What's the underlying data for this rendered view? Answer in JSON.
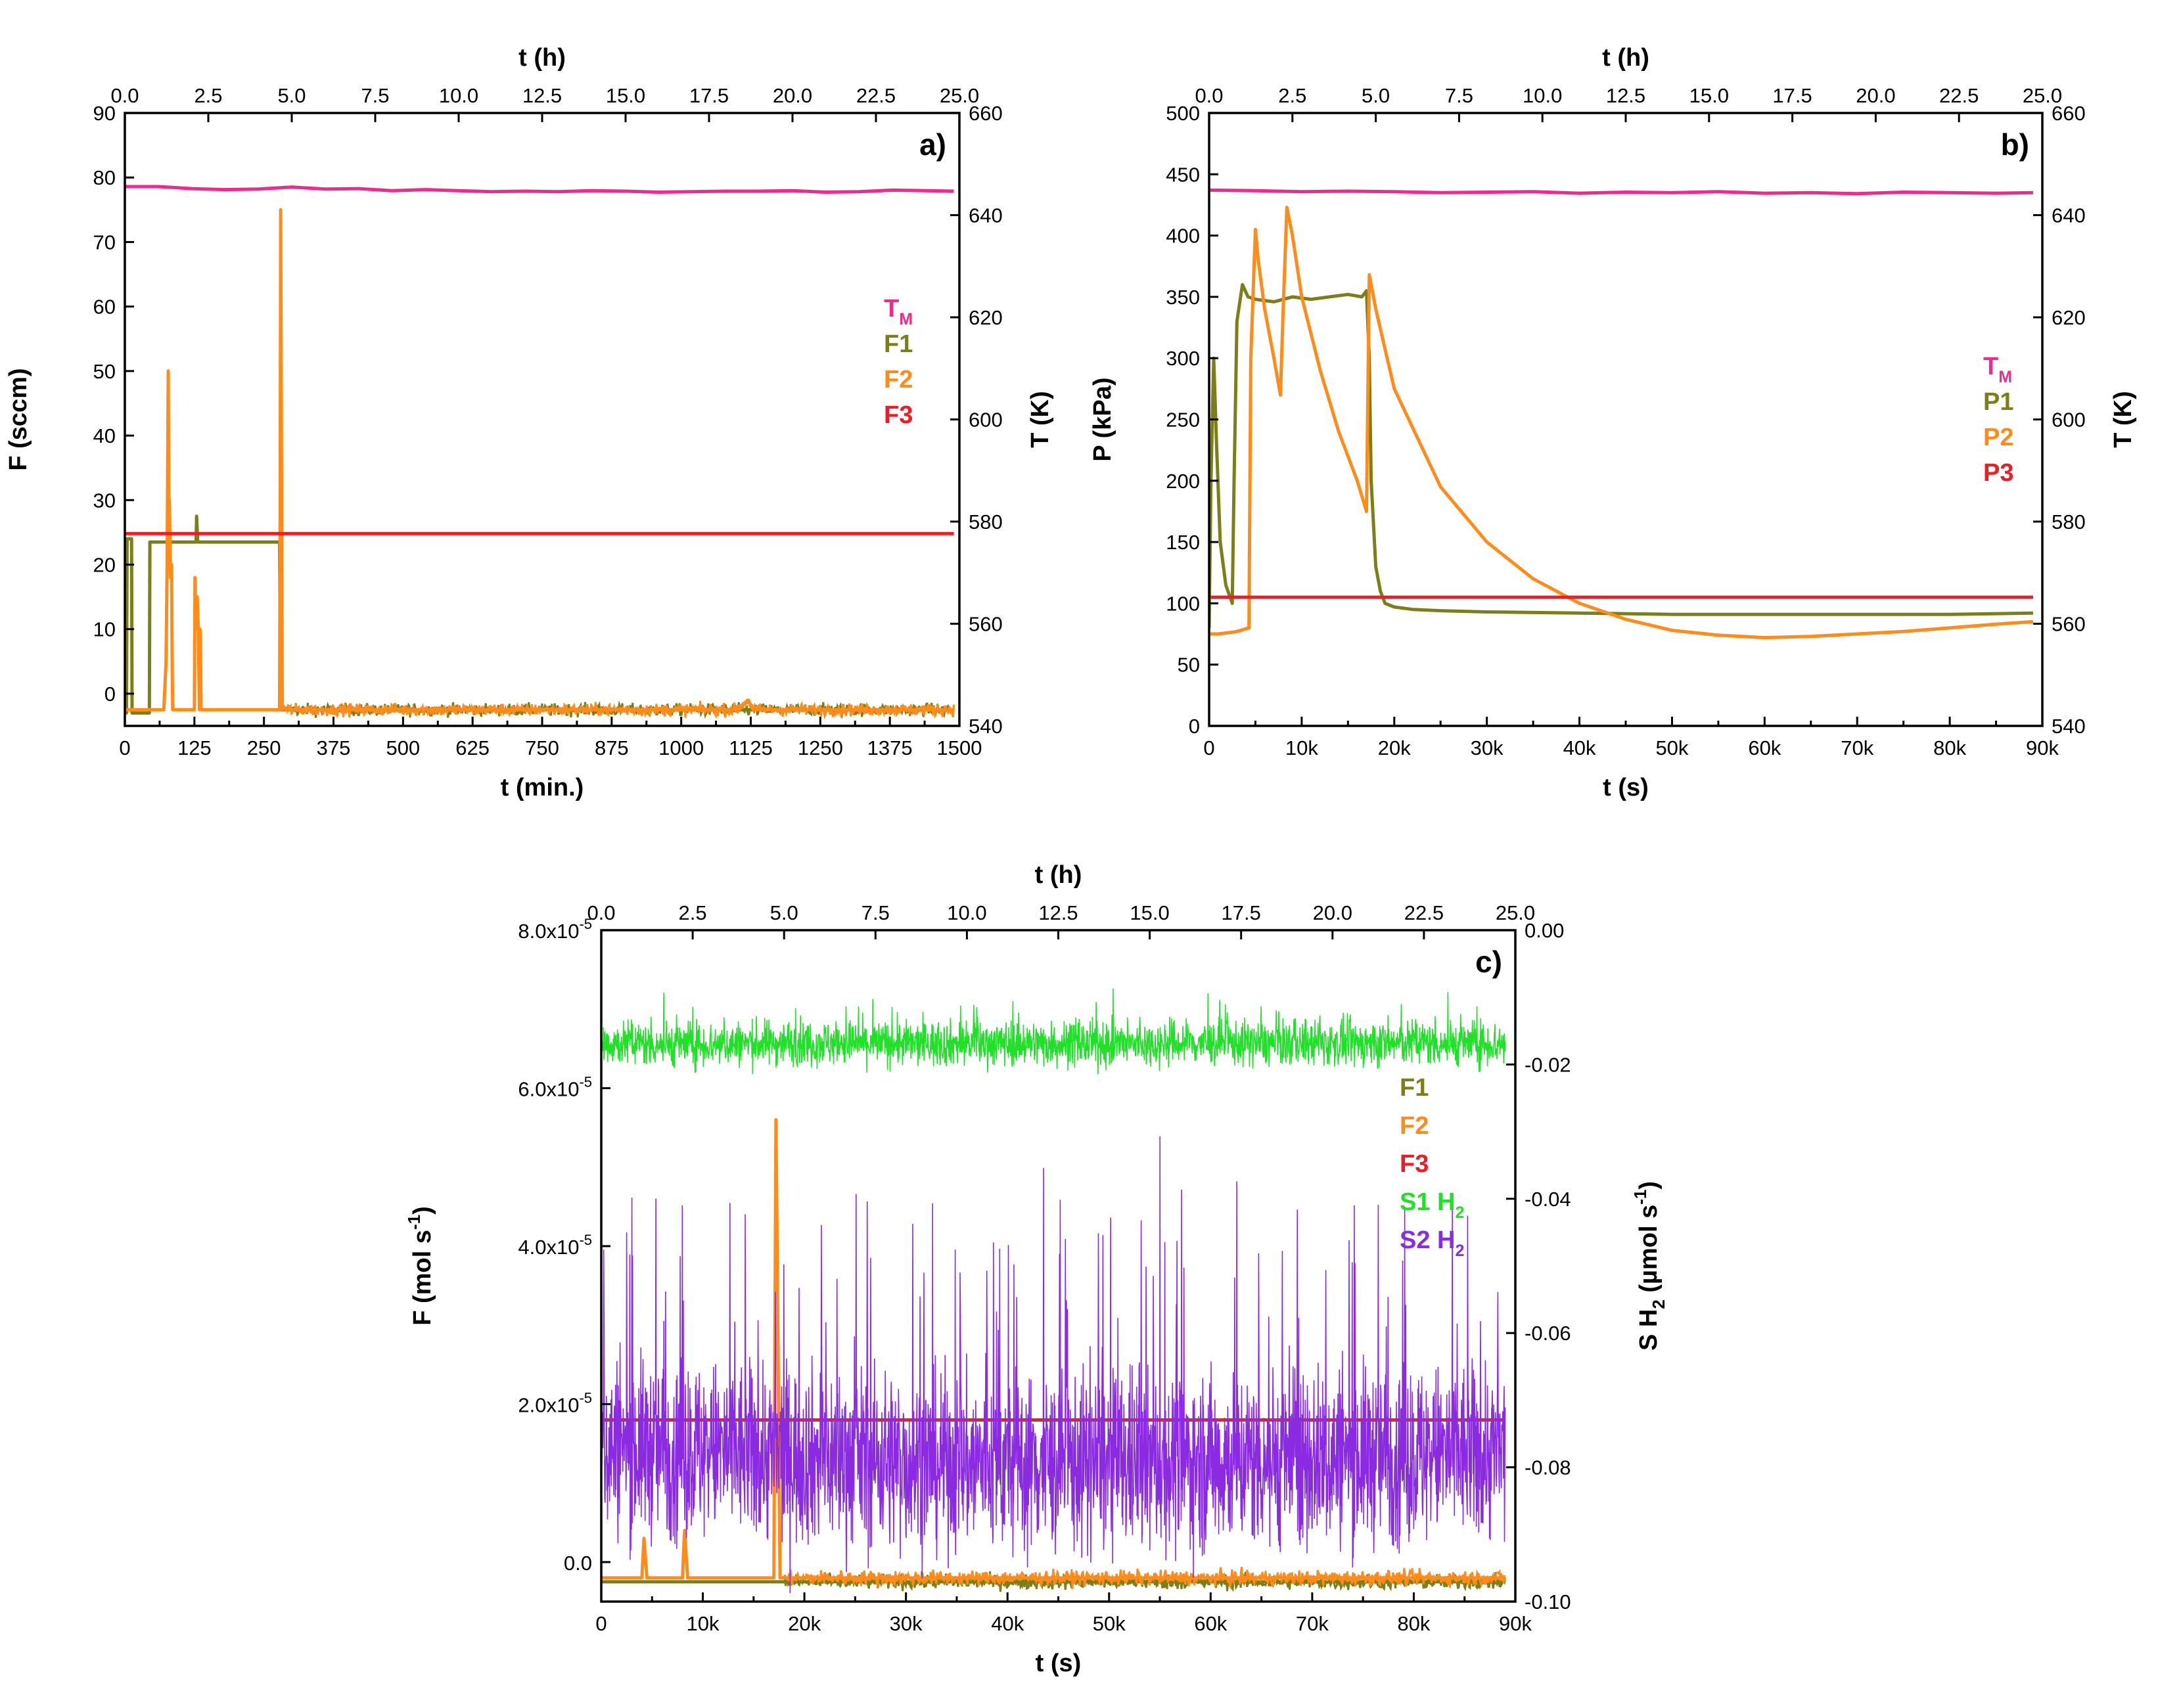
{
  "colors": {
    "TM": "#ee2a8e",
    "F1": "#7b7f1a",
    "F2": "#ff8c1a",
    "F3": "#ee1c24",
    "S1": "#22e02a",
    "S2": "#8a2be2"
  },
  "chart_data": [
    {
      "id": "a",
      "type": "line",
      "panel_label": "a)",
      "xlabel": "t (min.)",
      "x_top_label": "t (h)",
      "ylabel": "F (sccm)",
      "y2label": "T (K)",
      "xlim": [
        0,
        1500
      ],
      "x_top_lim": [
        0,
        25
      ],
      "ylim": [
        -5,
        90
      ],
      "y2lim": [
        540,
        660
      ],
      "x_ticks": [
        "0",
        "125",
        "250",
        "375",
        "500",
        "625",
        "750",
        "875",
        "1000",
        "1125",
        "1250",
        "1375",
        "1500"
      ],
      "x_top_ticks": [
        "0.0",
        "2.5",
        "5.0",
        "7.5",
        "10.0",
        "12.5",
        "15.0",
        "17.5",
        "20.0",
        "22.5",
        "25.0"
      ],
      "y_ticks": [
        "0",
        "10",
        "20",
        "30",
        "40",
        "50",
        "60",
        "70",
        "80",
        "90"
      ],
      "y2_ticks": [
        "540",
        "560",
        "580",
        "600",
        "620",
        "640",
        "660"
      ],
      "grid": false,
      "legend_position": "right",
      "legend": [
        {
          "key": "TM",
          "base": "T",
          "sub": "M"
        },
        {
          "key": "F1",
          "base": "F1"
        },
        {
          "key": "F2",
          "base": "F2"
        },
        {
          "key": "F3",
          "base": "F3"
        }
      ],
      "series": [
        {
          "name": "T",
          "key": "TM",
          "axis": "right",
          "x": [
            0,
            60,
            120,
            180,
            240,
            300,
            360,
            420,
            480,
            540,
            600,
            660,
            720,
            780,
            840,
            900,
            960,
            1020,
            1080,
            1140,
            1200,
            1260,
            1320,
            1380,
            1440,
            1490
          ],
          "y": [
            645.6,
            645.6,
            645.2,
            645.0,
            645.1,
            645.5,
            645.1,
            645.2,
            644.8,
            645.0,
            644.8,
            644.6,
            644.7,
            644.6,
            644.8,
            644.7,
            644.5,
            644.6,
            644.7,
            644.7,
            644.8,
            644.5,
            644.6,
            644.9,
            644.8,
            644.7
          ]
        },
        {
          "name": "F1",
          "key": "F1",
          "axis": "left",
          "x": [
            0,
            3,
            4,
            12,
            13,
            40,
            41,
            44,
            45,
            128,
            129,
            131,
            132,
            278,
            280,
            282,
            285,
            290,
            400,
            600,
            800,
            1000,
            1200,
            1400,
            1490
          ],
          "y": [
            -3,
            -3,
            24,
            24,
            -3,
            -3,
            -3,
            -3,
            23.5,
            23.5,
            27.5,
            23.5,
            23.5,
            23.5,
            -2.5,
            -2.5,
            -2.5,
            -2.5,
            -2.5,
            -2.5,
            -2.5,
            -2.5,
            -2.5,
            -2.5,
            -2.5
          ]
        },
        {
          "name": "F2",
          "key": "F2",
          "axis": "left",
          "x": [
            0,
            10,
            70,
            74,
            76,
            78,
            79,
            80,
            82,
            84,
            85,
            86,
            88,
            100,
            125,
            126,
            128,
            130,
            132,
            134,
            135,
            136,
            137,
            140,
            278,
            279,
            280,
            281,
            283,
            285,
            290,
            500,
            800,
            1100,
            1120,
            1130,
            1140,
            1200,
            1400,
            1490
          ],
          "y": [
            -2.5,
            -2.5,
            -2.5,
            5,
            20,
            50,
            28,
            30,
            18,
            20,
            5,
            -2.5,
            -2.5,
            -2.5,
            -2.5,
            18,
            10,
            15,
            10,
            -2.5,
            10,
            8,
            -2.5,
            -2.5,
            -2.5,
            25,
            75,
            50,
            -2.5,
            -2,
            -2.5,
            -2.5,
            -2.5,
            -2.5,
            -1,
            -2.5,
            -2.5,
            -2.5,
            -2.5,
            -2.5
          ]
        },
        {
          "name": "F3",
          "key": "F3",
          "axis": "left",
          "x": [
            0,
            200,
            400,
            600,
            800,
            1000,
            1200,
            1400,
            1490
          ],
          "y": [
            24.8,
            24.8,
            24.8,
            24.8,
            24.8,
            24.8,
            24.8,
            24.8,
            24.8
          ]
        }
      ]
    },
    {
      "id": "b",
      "type": "line",
      "panel_label": "b)",
      "xlabel": "t (s)",
      "x_top_label": "t (h)",
      "ylabel": "P (kPa)",
      "y2label": "T (K)",
      "xlim": [
        0,
        90000
      ],
      "x_top_lim": [
        0,
        25
      ],
      "ylim": [
        0,
        500
      ],
      "y2lim": [
        540,
        660
      ],
      "x_ticks": [
        "0",
        "10k",
        "20k",
        "30k",
        "40k",
        "50k",
        "60k",
        "70k",
        "80k",
        "90k"
      ],
      "x_top_ticks": [
        "0.0",
        "2.5",
        "5.0",
        "7.5",
        "10.0",
        "12.5",
        "15.0",
        "17.5",
        "20.0",
        "22.5",
        "25.0"
      ],
      "y_ticks": [
        "0",
        "50",
        "100",
        "150",
        "200",
        "250",
        "300",
        "350",
        "400",
        "450",
        "500"
      ],
      "y2_ticks": [
        "540",
        "560",
        "580",
        "600",
        "620",
        "640",
        "660"
      ],
      "grid": false,
      "legend_position": "right",
      "legend": [
        {
          "key": "TM",
          "base": "T",
          "sub": "M"
        },
        {
          "key": "F1",
          "base": "P1"
        },
        {
          "key": "F2",
          "base": "P2"
        },
        {
          "key": "F3",
          "base": "P3"
        }
      ],
      "series": [
        {
          "name": "T",
          "key": "TM",
          "axis": "right",
          "x": [
            0,
            5000,
            10000,
            15000,
            20000,
            25000,
            30000,
            35000,
            40000,
            45000,
            50000,
            55000,
            60000,
            65000,
            70000,
            75000,
            80000,
            85000,
            89000
          ],
          "y": [
            644.9,
            644.8,
            644.6,
            644.7,
            644.6,
            644.4,
            644.5,
            644.6,
            644.3,
            644.5,
            644.4,
            644.6,
            644.3,
            644.4,
            644.2,
            644.5,
            644.4,
            644.3,
            644.4
          ]
        },
        {
          "name": "P1",
          "key": "F1",
          "axis": "left",
          "x": [
            0,
            200,
            500,
            800,
            1200,
            1800,
            2500,
            2700,
            3000,
            3600,
            4200,
            5000,
            7000,
            9000,
            11000,
            13000,
            15000,
            16500,
            17000,
            17300,
            17500,
            18000,
            18500,
            19000,
            20000,
            22000,
            25000,
            30000,
            40000,
            50000,
            60000,
            70000,
            80000,
            89000
          ],
          "y": [
            80,
            200,
            300,
            230,
            150,
            115,
            100,
            200,
            330,
            360,
            350,
            348,
            346,
            350,
            348,
            350,
            352,
            350,
            355,
            300,
            200,
            130,
            110,
            100,
            97,
            95,
            94,
            93,
            92,
            91,
            91,
            91,
            91,
            92
          ]
        },
        {
          "name": "P2",
          "key": "F2",
          "axis": "left",
          "x": [
            0,
            1000,
            3000,
            4300,
            4500,
            5000,
            5300,
            6000,
            7000,
            7700,
            8000,
            8400,
            9000,
            10000,
            12000,
            14000,
            16000,
            17000,
            17300,
            18000,
            20000,
            25000,
            30000,
            35000,
            40000,
            45000,
            50000,
            55000,
            60000,
            65000,
            70000,
            75000,
            80000,
            85000,
            89000
          ],
          "y": [
            75,
            75,
            77,
            80,
            300,
            405,
            380,
            340,
            300,
            270,
            340,
            423,
            400,
            350,
            290,
            240,
            200,
            175,
            368,
            340,
            275,
            195,
            150,
            120,
            100,
            87,
            78,
            74,
            72,
            73,
            75,
            77,
            80,
            83,
            85
          ]
        },
        {
          "name": "P3",
          "key": "F3",
          "axis": "left",
          "x": [
            0,
            10000,
            20000,
            30000,
            40000,
            50000,
            60000,
            70000,
            80000,
            89000
          ],
          "y": [
            105,
            105,
            105,
            105,
            105,
            105,
            105,
            105,
            105,
            105
          ]
        }
      ]
    },
    {
      "id": "c",
      "type": "line",
      "panel_label": "c)",
      "xlabel": "t (s)",
      "x_top_label": "t (h)",
      "ylabel": "F (mol s<sup>-1</sup>)",
      "ylabel_base": "F (mol s",
      "ylabel_sup": "-1",
      "ylabel_end": ")",
      "y2label_parts": [
        "S H",
        "2",
        " (µmol s",
        "-1",
        ")"
      ],
      "xlim": [
        0,
        90000
      ],
      "x_top_lim": [
        0,
        25
      ],
      "ylim": [
        -5e-06,
        8e-05
      ],
      "y2lim": [
        -0.1,
        0.0
      ],
      "x_ticks": [
        "0",
        "10k",
        "20k",
        "30k",
        "40k",
        "50k",
        "60k",
        "70k",
        "80k",
        "90k"
      ],
      "x_top_ticks": [
        "0.0",
        "2.5",
        "5.0",
        "7.5",
        "10.0",
        "12.5",
        "15.0",
        "17.5",
        "20.0",
        "22.5",
        "25.0"
      ],
      "y_ticks_values": [
        0,
        2e-05,
        4e-05,
        6e-05,
        8e-05
      ],
      "y_ticks": [
        {
          "base": "0.0",
          "exp": ""
        },
        {
          "base": "2.0x10",
          "exp": "-5"
        },
        {
          "base": "4.0x10",
          "exp": "-5"
        },
        {
          "base": "6.0x10",
          "exp": "-5"
        },
        {
          "base": "8.0x10",
          "exp": "-5"
        }
      ],
      "y2_ticks": [
        "-0.10",
        "-0.08",
        "-0.06",
        "-0.04",
        "-0.02",
        "0.00"
      ],
      "grid": false,
      "legend_position": "right",
      "legend": [
        {
          "key": "F1",
          "base": "F1"
        },
        {
          "key": "F2",
          "base": "F2"
        },
        {
          "key": "F3",
          "base": "F3"
        },
        {
          "key": "S1",
          "base": "S1 H",
          "sub": "2"
        },
        {
          "key": "S2",
          "base": "S2 H",
          "sub": "2"
        }
      ],
      "series": [
        {
          "name": "F1",
          "key": "F1",
          "axis": "left",
          "x": [
            0,
            10000,
            20000,
            30000,
            40000,
            50000,
            60000,
            70000,
            80000,
            89000
          ],
          "y": [
            -2.5e-06,
            -2.5e-06,
            -2.5e-06,
            -2.5e-06,
            -2.5e-06,
            -2.5e-06,
            -2.5e-06,
            -2.5e-06,
            -2.5e-06,
            -2.5e-06
          ]
        },
        {
          "name": "F2",
          "key": "F2",
          "axis": "left",
          "x": [
            0,
            4000,
            4200,
            4500,
            5000,
            8000,
            8200,
            8500,
            17000,
            17100,
            17200,
            17400,
            17600,
            18000,
            30000,
            50000,
            70000,
            89000
          ],
          "y": [
            -2e-06,
            -2e-06,
            3e-06,
            -2e-06,
            -2e-06,
            -2e-06,
            4e-06,
            -2e-06,
            -2e-06,
            3e-05,
            5.6e-05,
            2.8e-05,
            -2e-06,
            -2e-06,
            -2e-06,
            -2e-06,
            -2e-06,
            -2e-06
          ]
        },
        {
          "name": "F3",
          "key": "F3",
          "axis": "left",
          "x": [
            0,
            10000,
            20000,
            30000,
            40000,
            50000,
            60000,
            70000,
            80000,
            89000
          ],
          "y": [
            1.8e-05,
            1.8e-05,
            1.8e-05,
            1.8e-05,
            1.8e-05,
            1.8e-05,
            1.8e-05,
            1.8e-05,
            1.8e-05,
            1.8e-05
          ]
        },
        {
          "name": "S1 H2",
          "key": "S1",
          "axis": "right",
          "x": [
            0,
            10000,
            20000,
            30000,
            40000,
            50000,
            60000,
            70000,
            80000,
            89000
          ],
          "y": [
            -0.0168,
            -0.017,
            -0.0167,
            -0.0169,
            -0.0168,
            -0.017,
            -0.0168,
            -0.0169,
            -0.0168,
            -0.0169
          ],
          "noise": 0.0032
        },
        {
          "name": "S2 H2",
          "key": "S2",
          "axis": "right",
          "x": [
            0,
            10000,
            20000,
            30000,
            40000,
            50000,
            60000,
            70000,
            80000,
            89000
          ],
          "y": [
            -0.077,
            -0.0775,
            -0.0782,
            -0.079,
            -0.0795,
            -0.0795,
            -0.079,
            -0.0785,
            -0.078,
            -0.078
          ],
          "noise": 0.0125
        }
      ]
    }
  ]
}
